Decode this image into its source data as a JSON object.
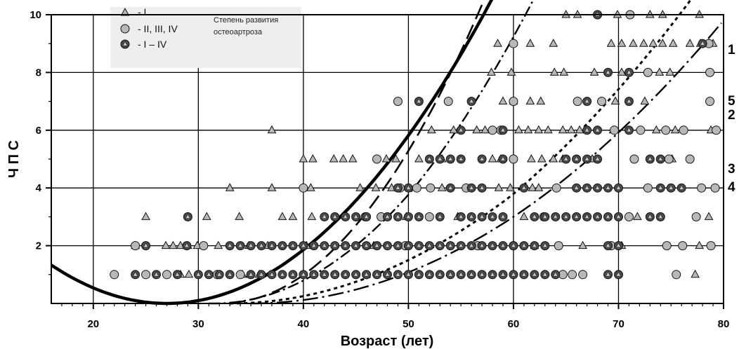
{
  "chart_data": {
    "type": "scatter",
    "xlabel": "Возраст (лет)",
    "ylabel": "Ч П С",
    "xlim": [
      16,
      80
    ],
    "ylim": [
      0,
      10
    ],
    "xticks": [
      20,
      30,
      40,
      50,
      60,
      70,
      80
    ],
    "yticks": [
      2,
      4,
      6,
      8,
      10
    ],
    "grid": true,
    "legend": {
      "placement": "top-left",
      "title": "Степень развития остеоартроза",
      "entries": [
        {
          "marker": "triangle",
          "label": "- I"
        },
        {
          "marker": "circle",
          "label": "- II, III, IV"
        },
        {
          "marker": "circle-triangle",
          "label": "- I – IV"
        }
      ]
    },
    "series": [
      {
        "marker": "triangle",
        "points": [
          [
            25,
            3
          ],
          [
            30.8,
            3
          ],
          [
            33.9,
            3
          ],
          [
            38,
            3
          ],
          [
            39,
            3
          ],
          [
            40.8,
            3
          ],
          [
            49.8,
            3
          ],
          [
            54.7,
            3
          ],
          [
            61,
            3
          ],
          [
            71.8,
            3
          ],
          [
            78.6,
            3
          ],
          [
            24,
            2
          ],
          [
            26.9,
            2
          ],
          [
            27.6,
            2
          ],
          [
            28.3,
            2
          ],
          [
            29,
            2
          ],
          [
            29.9,
            2
          ],
          [
            31.9,
            2
          ],
          [
            34.8,
            2
          ],
          [
            36.6,
            2
          ],
          [
            40.3,
            2
          ],
          [
            46.7,
            2
          ],
          [
            62,
            2
          ],
          [
            66.6,
            2
          ],
          [
            70.3,
            2
          ],
          [
            77.7,
            2
          ],
          [
            28.3,
            1
          ],
          [
            29.1,
            1
          ],
          [
            34.2,
            1
          ],
          [
            34.9,
            1
          ],
          [
            35.8,
            1
          ],
          [
            77.3,
            1
          ],
          [
            33,
            4
          ],
          [
            37,
            4
          ],
          [
            40.7,
            4
          ],
          [
            45.4,
            4
          ],
          [
            46.9,
            4
          ],
          [
            48.4,
            4
          ],
          [
            53.2,
            4
          ],
          [
            58.6,
            4
          ],
          [
            59.7,
            4
          ],
          [
            61.8,
            4
          ],
          [
            62.4,
            4
          ],
          [
            40,
            5
          ],
          [
            40.9,
            5
          ],
          [
            42.9,
            5
          ],
          [
            43.8,
            5
          ],
          [
            44.7,
            5
          ],
          [
            47.9,
            5
          ],
          [
            48.8,
            5
          ],
          [
            51,
            5
          ],
          [
            53.2,
            5
          ],
          [
            58,
            5
          ],
          [
            58.8,
            5
          ],
          [
            61.7,
            5
          ],
          [
            62.7,
            5
          ],
          [
            63.8,
            5
          ],
          [
            64.7,
            5
          ],
          [
            67.5,
            5
          ],
          [
            75.1,
            5
          ],
          [
            37,
            6
          ],
          [
            52.2,
            6
          ],
          [
            54.3,
            6
          ],
          [
            56.5,
            6
          ],
          [
            57.3,
            6
          ],
          [
            60.5,
            6
          ],
          [
            61.4,
            6
          ],
          [
            62.4,
            6
          ],
          [
            63.3,
            6
          ],
          [
            64.7,
            6
          ],
          [
            65.5,
            6
          ],
          [
            66.3,
            6
          ],
          [
            69.5,
            6
          ],
          [
            73.6,
            6
          ],
          [
            75.4,
            6
          ],
          [
            78.8,
            6
          ],
          [
            59,
            7
          ],
          [
            60,
            7
          ],
          [
            61.6,
            7
          ],
          [
            62.6,
            7
          ],
          [
            69.7,
            7
          ],
          [
            72.5,
            7
          ],
          [
            57.9,
            8
          ],
          [
            59.8,
            8
          ],
          [
            63.9,
            8
          ],
          [
            64.8,
            8
          ],
          [
            67.7,
            8
          ],
          [
            70.3,
            8
          ],
          [
            73.9,
            8
          ],
          [
            74.9,
            8
          ],
          [
            58.5,
            9
          ],
          [
            61.6,
            9
          ],
          [
            63.8,
            9
          ],
          [
            69.3,
            9
          ],
          [
            70.3,
            9
          ],
          [
            71.4,
            9
          ],
          [
            72.4,
            9
          ],
          [
            73.3,
            9
          ],
          [
            74.2,
            9
          ],
          [
            75.2,
            9
          ],
          [
            76.8,
            9
          ],
          [
            77.8,
            9
          ],
          [
            79,
            9
          ],
          [
            65,
            10
          ],
          [
            66.1,
            10
          ],
          [
            69.9,
            10
          ],
          [
            73,
            10
          ],
          [
            74.2,
            10
          ],
          [
            77.7,
            10
          ]
        ]
      },
      {
        "marker": "circle",
        "points": [
          [
            22,
            1
          ],
          [
            25,
            1
          ],
          [
            27,
            1
          ],
          [
            31.8,
            1
          ],
          [
            34,
            1
          ],
          [
            64.7,
            1
          ],
          [
            65.6,
            1
          ],
          [
            66.6,
            1
          ],
          [
            75.5,
            1
          ],
          [
            24,
            2
          ],
          [
            30.5,
            2
          ],
          [
            49.7,
            2
          ],
          [
            56.6,
            2
          ],
          [
            60,
            2
          ],
          [
            64.3,
            2
          ],
          [
            69.3,
            2
          ],
          [
            74.6,
            2
          ],
          [
            76.1,
            2
          ],
          [
            78.8,
            2
          ],
          [
            45.9,
            3
          ],
          [
            47.4,
            3
          ],
          [
            52,
            3
          ],
          [
            62.9,
            3
          ],
          [
            71,
            3
          ],
          [
            77.4,
            3
          ],
          [
            40,
            4
          ],
          [
            49.2,
            4
          ],
          [
            50.8,
            4
          ],
          [
            52.1,
            4
          ],
          [
            55.5,
            4
          ],
          [
            64.1,
            4
          ],
          [
            72.8,
            4
          ],
          [
            77.9,
            4
          ],
          [
            79.2,
            4
          ],
          [
            47,
            5
          ],
          [
            60,
            5
          ],
          [
            71.5,
            5
          ],
          [
            74.8,
            5
          ],
          [
            76.8,
            5
          ],
          [
            58,
            6
          ],
          [
            58.8,
            6
          ],
          [
            69.6,
            6
          ],
          [
            72.1,
            6
          ],
          [
            74.5,
            6
          ],
          [
            76.2,
            6
          ],
          [
            79.3,
            6
          ],
          [
            49,
            7
          ],
          [
            53.8,
            7
          ],
          [
            60,
            7
          ],
          [
            66.1,
            7
          ],
          [
            68.4,
            7
          ],
          [
            78.7,
            7
          ],
          [
            72.8,
            8
          ],
          [
            78.7,
            8
          ],
          [
            60,
            9
          ],
          [
            78.6,
            9
          ],
          [
            68,
            10
          ],
          [
            71.1,
            10
          ]
        ]
      },
      {
        "marker": "circle-triangle",
        "points": [
          [
            24,
            1
          ],
          [
            26,
            1
          ],
          [
            28,
            1
          ],
          [
            30,
            1
          ],
          [
            31,
            1
          ],
          [
            32,
            1
          ],
          [
            33,
            1
          ],
          [
            35,
            1
          ],
          [
            36,
            1
          ],
          [
            37,
            1
          ],
          [
            38,
            1
          ],
          [
            39,
            1
          ],
          [
            40,
            1
          ],
          [
            41,
            1
          ],
          [
            42,
            1
          ],
          [
            43,
            1
          ],
          [
            44,
            1
          ],
          [
            45,
            1
          ],
          [
            46,
            1
          ],
          [
            47,
            1
          ],
          [
            48,
            1
          ],
          [
            49,
            1
          ],
          [
            50,
            1
          ],
          [
            51,
            1
          ],
          [
            52,
            1
          ],
          [
            53,
            1
          ],
          [
            54,
            1
          ],
          [
            55,
            1
          ],
          [
            56,
            1
          ],
          [
            57,
            1
          ],
          [
            58,
            1
          ],
          [
            59,
            1
          ],
          [
            60,
            1
          ],
          [
            61,
            1
          ],
          [
            62,
            1
          ],
          [
            63,
            1
          ],
          [
            64,
            1
          ],
          [
            69,
            1
          ],
          [
            70,
            1
          ],
          [
            25,
            2
          ],
          [
            28.9,
            2
          ],
          [
            33,
            2
          ],
          [
            34,
            2
          ],
          [
            35,
            2
          ],
          [
            36,
            2
          ],
          [
            37,
            2
          ],
          [
            38,
            2
          ],
          [
            39,
            2
          ],
          [
            40,
            2
          ],
          [
            41,
            2
          ],
          [
            42,
            2
          ],
          [
            43,
            2
          ],
          [
            44,
            2
          ],
          [
            45,
            2
          ],
          [
            46,
            2
          ],
          [
            47,
            2
          ],
          [
            48,
            2
          ],
          [
            49,
            2
          ],
          [
            50,
            2
          ],
          [
            51,
            2
          ],
          [
            52,
            2
          ],
          [
            53,
            2
          ],
          [
            54,
            2
          ],
          [
            55,
            2
          ],
          [
            56,
            2
          ],
          [
            57,
            2
          ],
          [
            58,
            2
          ],
          [
            59,
            2
          ],
          [
            60,
            2
          ],
          [
            61,
            2
          ],
          [
            62,
            2
          ],
          [
            63,
            2
          ],
          [
            69,
            2
          ],
          [
            70,
            2
          ],
          [
            29,
            3
          ],
          [
            42,
            3
          ],
          [
            43,
            3
          ],
          [
            44,
            3
          ],
          [
            45,
            3
          ],
          [
            46,
            3
          ],
          [
            48,
            3
          ],
          [
            49,
            3
          ],
          [
            50,
            3
          ],
          [
            51,
            3
          ],
          [
            53,
            3
          ],
          [
            55,
            3
          ],
          [
            56,
            3
          ],
          [
            57,
            3
          ],
          [
            58,
            3
          ],
          [
            59,
            3
          ],
          [
            62,
            3
          ],
          [
            63,
            3
          ],
          [
            64,
            3
          ],
          [
            65,
            3
          ],
          [
            66,
            3
          ],
          [
            67,
            3
          ],
          [
            68,
            3
          ],
          [
            69,
            3
          ],
          [
            70,
            3
          ],
          [
            73,
            3
          ],
          [
            74,
            3
          ],
          [
            49,
            4
          ],
          [
            50,
            4
          ],
          [
            54,
            4
          ],
          [
            56,
            4
          ],
          [
            57,
            4
          ],
          [
            61,
            4
          ],
          [
            66,
            4
          ],
          [
            67,
            4
          ],
          [
            68,
            4
          ],
          [
            69,
            4
          ],
          [
            70,
            4
          ],
          [
            74,
            4
          ],
          [
            75,
            4
          ],
          [
            76,
            4
          ],
          [
            52,
            5
          ],
          [
            53,
            5
          ],
          [
            54,
            5
          ],
          [
            55,
            5
          ],
          [
            57,
            5
          ],
          [
            59,
            5
          ],
          [
            65,
            5
          ],
          [
            66,
            5
          ],
          [
            67,
            5
          ],
          [
            68,
            5
          ],
          [
            73,
            5
          ],
          [
            74,
            5
          ],
          [
            55,
            6
          ],
          [
            59,
            6
          ],
          [
            67,
            6
          ],
          [
            68,
            6
          ],
          [
            71,
            6
          ],
          [
            51,
            7
          ],
          [
            56,
            7
          ],
          [
            67,
            7
          ],
          [
            71,
            7
          ],
          [
            69,
            8
          ],
          [
            71,
            8
          ],
          [
            78,
            9
          ],
          [
            68,
            10
          ]
        ]
      }
    ],
    "curves": [
      {
        "name": "1",
        "style": "long-dash"
      },
      {
        "name": "5",
        "style": "thick-solid"
      },
      {
        "name": "2",
        "style": "dash-dot"
      },
      {
        "name": "3",
        "style": "dotted"
      },
      {
        "name": "4",
        "style": "long-dash-dot"
      }
    ]
  }
}
